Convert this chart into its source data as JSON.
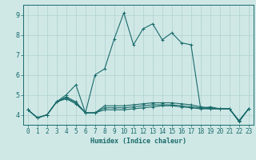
{
  "xlabel": "Humidex (Indice chaleur)",
  "xlim": [
    -0.5,
    23.5
  ],
  "ylim": [
    3.5,
    9.5
  ],
  "yticks": [
    4,
    5,
    6,
    7,
    8,
    9
  ],
  "xticks": [
    0,
    1,
    2,
    3,
    4,
    5,
    6,
    7,
    8,
    9,
    10,
    11,
    12,
    13,
    14,
    15,
    16,
    17,
    18,
    19,
    20,
    21,
    22,
    23
  ],
  "background_color": "#cfe8e6",
  "grid_color": "#afd0ce",
  "line_color": "#1a6b6b",
  "lines": [
    {
      "x": [
        0,
        1,
        2,
        3,
        4,
        5,
        6,
        7,
        8,
        9,
        10,
        11,
        12,
        13,
        14,
        15,
        16,
        17,
        18,
        19,
        20,
        21,
        22,
        23
      ],
      "y": [
        4.25,
        3.85,
        4.0,
        4.65,
        5.0,
        5.5,
        4.1,
        6.0,
        6.3,
        7.8,
        9.1,
        7.5,
        8.3,
        8.55,
        7.75,
        8.1,
        7.6,
        7.5,
        4.3,
        4.4,
        4.3,
        4.3,
        3.65,
        4.3
      ]
    },
    {
      "x": [
        0,
        1,
        2,
        3,
        4,
        5,
        6,
        7,
        8,
        9,
        10,
        11,
        12,
        13,
        14,
        15,
        16,
        17,
        18,
        19,
        20,
        21,
        22,
        23
      ],
      "y": [
        4.25,
        3.85,
        4.0,
        4.65,
        4.9,
        4.65,
        4.1,
        4.1,
        4.45,
        4.45,
        4.45,
        4.5,
        4.55,
        4.6,
        4.6,
        4.6,
        4.55,
        4.5,
        4.4,
        4.35,
        4.3,
        4.3,
        3.7,
        4.3
      ]
    },
    {
      "x": [
        0,
        1,
        2,
        3,
        4,
        5,
        6,
        7,
        8,
        9,
        10,
        11,
        12,
        13,
        14,
        15,
        16,
        17,
        18,
        19,
        20,
        21,
        22,
        23
      ],
      "y": [
        4.25,
        3.85,
        4.0,
        4.65,
        4.85,
        4.6,
        4.1,
        4.1,
        4.35,
        4.35,
        4.35,
        4.4,
        4.45,
        4.5,
        4.5,
        4.5,
        4.45,
        4.4,
        4.35,
        4.3,
        4.3,
        4.3,
        3.7,
        4.3
      ]
    },
    {
      "x": [
        0,
        1,
        2,
        3,
        4,
        5,
        6,
        7,
        8,
        9,
        10,
        11,
        12,
        13,
        14,
        15,
        16,
        17,
        18,
        19,
        20,
        21,
        22,
        23
      ],
      "y": [
        4.25,
        3.85,
        4.0,
        4.65,
        4.8,
        4.55,
        4.1,
        4.1,
        4.25,
        4.25,
        4.25,
        4.3,
        4.35,
        4.4,
        4.45,
        4.45,
        4.4,
        4.35,
        4.3,
        4.3,
        4.3,
        4.3,
        3.7,
        4.3
      ]
    }
  ]
}
